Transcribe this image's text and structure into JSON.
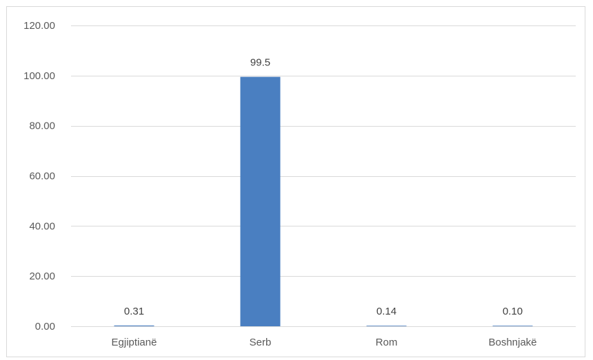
{
  "chart_data": {
    "type": "bar",
    "categories": [
      "Egjiptianë",
      "Serb",
      "Rom",
      "Boshnjakë"
    ],
    "values": [
      0.31,
      99.5,
      0.14,
      0.1
    ],
    "data_labels": [
      "0.31",
      "99.5",
      "0.14",
      "0.10"
    ],
    "y_ticks": [
      "0.00",
      "20.00",
      "40.00",
      "60.00",
      "80.00",
      "100.00",
      "120.00"
    ],
    "ylim": [
      0,
      120
    ],
    "grid": true,
    "legend": "none",
    "bar_color": "#4a7fc1",
    "gridline_color": "#d9d9d9"
  }
}
